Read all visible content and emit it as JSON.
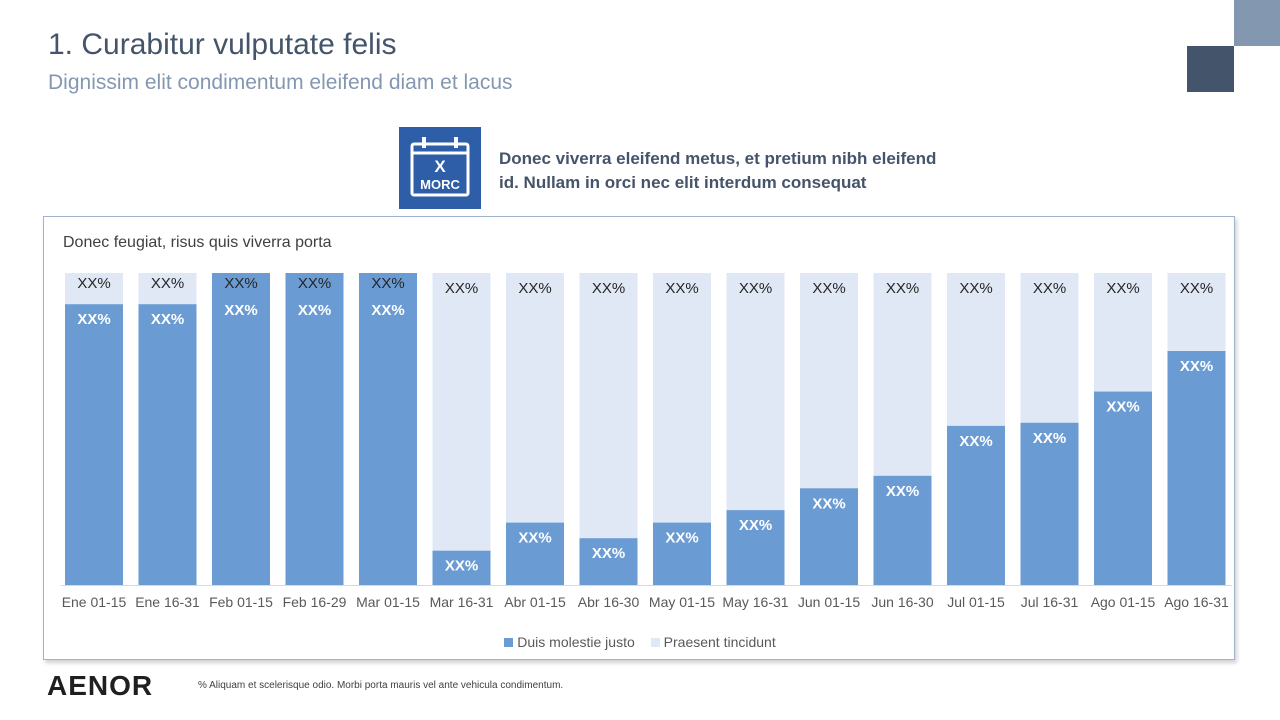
{
  "header": {
    "title": "1. Curabitur vulputate felis",
    "subtitle": "Dignissim elit condimentum eleifend diam et lacus"
  },
  "callout": {
    "icon": "calendar-icon",
    "icon_letter": "X",
    "icon_label": "MORC",
    "line1": "Donec viverra eleifend metus, et pretium nibh eleifend",
    "line2": "id. Nullam in orci nec elit interdum consequat"
  },
  "panel": {
    "title": "Donec feugiat, risus quis viverra porta"
  },
  "chart_data": {
    "type": "bar",
    "stacked": true,
    "categories": [
      "Ene  01-15",
      "Ene  16-31",
      "Feb  01-15",
      "Feb  16-29",
      "Mar  01-15",
      "Mar  16-31",
      "Abr  01-15",
      "Abr  16-30",
      "May 01-15",
      "May  16-31",
      "Jun  01-15",
      "Jun  16-30",
      "Jul  01-15",
      "Jul  16-31",
      "Ago  01-15",
      "Ago 16-31"
    ],
    "series": [
      {
        "name": "Duis molestie justo",
        "color": "#6a9bd3",
        "values": [
          90,
          90,
          100,
          100,
          100,
          11,
          20,
          15,
          20,
          24,
          31,
          35,
          51,
          52,
          62,
          75
        ],
        "labels": [
          "XX%",
          "XX%",
          "XX%",
          "XX%",
          "XX%",
          "XX%",
          "XX%",
          "XX%",
          "XX%",
          "XX%",
          "XX%",
          "XX%",
          "XX%",
          "XX%",
          "XX%",
          "XX%"
        ]
      },
      {
        "name": "Praesent tincidunt",
        "color": "#dfe8f4",
        "values": [
          10,
          10,
          0,
          0,
          0,
          89,
          80,
          85,
          80,
          76,
          69,
          65,
          49,
          48,
          38,
          25
        ],
        "labels": [
          "XX%",
          "XX%",
          "XX%",
          "XX%",
          "XX%",
          "XX%",
          "XX%",
          "XX%",
          "XX%",
          "XX%",
          "XX%",
          "XX%",
          "XX%",
          "XX%",
          "XX%",
          "XX%"
        ]
      }
    ],
    "ylim": [
      0,
      100
    ],
    "grid": false,
    "legend_position": "bottom"
  },
  "logo": {
    "text": "AENOR"
  },
  "footnote": "% Aliquam et scelerisque odio. Morbi porta mauris vel ante vehicula condimentum.",
  "colors": {
    "primary": "#44546a",
    "accent": "#8497b0",
    "bar_dark": "#6a9bd3",
    "bar_light": "#dfe8f4",
    "icon_bg": "#2e5ea8"
  }
}
